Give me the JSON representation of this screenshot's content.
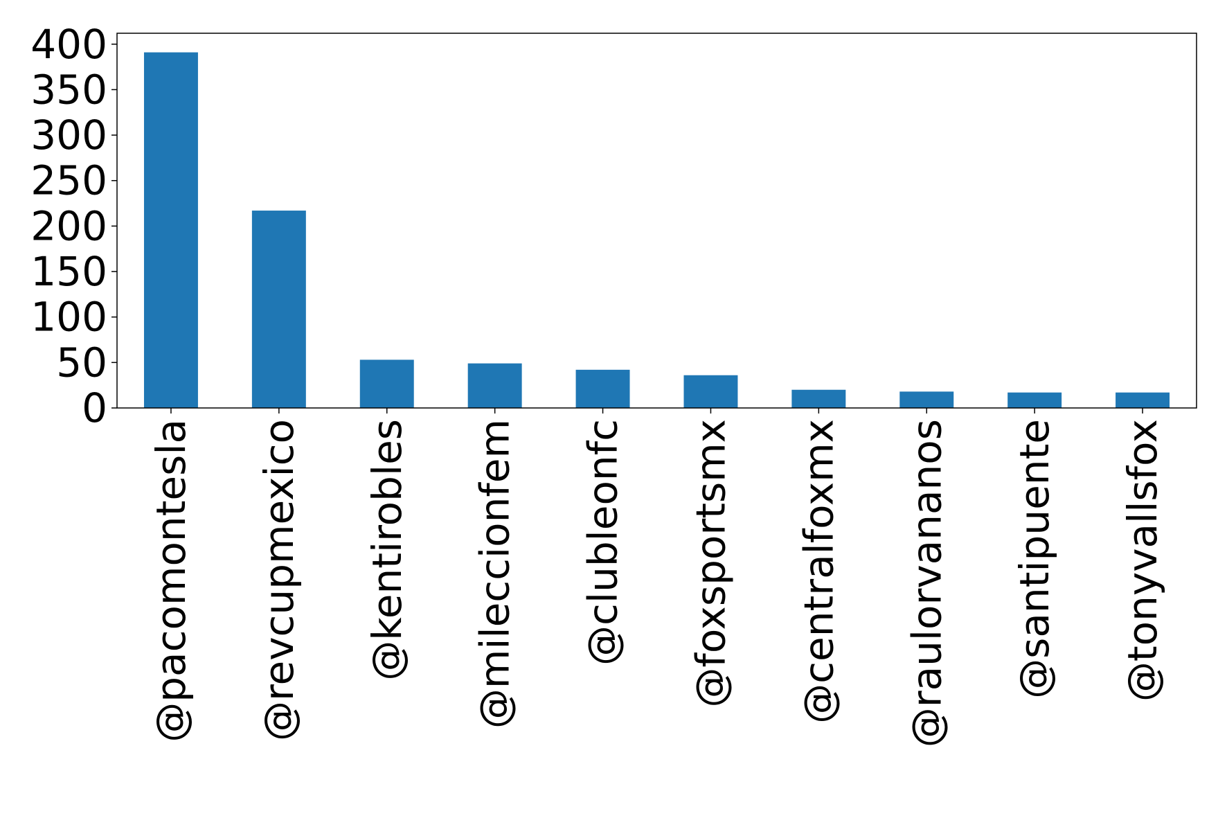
{
  "chart_data": {
    "type": "bar",
    "title": "",
    "xlabel": "",
    "ylabel": "",
    "categories": [
      "@pacomontesla",
      "@revcupmexico",
      "@kentirobles",
      "@mileccionfem",
      "@clubleonfc",
      "@foxsportsmx",
      "@centralfoxmx",
      "@raulorvananos",
      "@santipuente",
      "@tonyvallsfox"
    ],
    "values": [
      391,
      217,
      53,
      49,
      42,
      36,
      20,
      18,
      17,
      17
    ],
    "ylim": [
      0,
      412
    ],
    "yticks": [
      0,
      50,
      100,
      150,
      200,
      250,
      300,
      350,
      400
    ],
    "grid": false,
    "legend": "none",
    "bar_color": "#1f77b4"
  }
}
